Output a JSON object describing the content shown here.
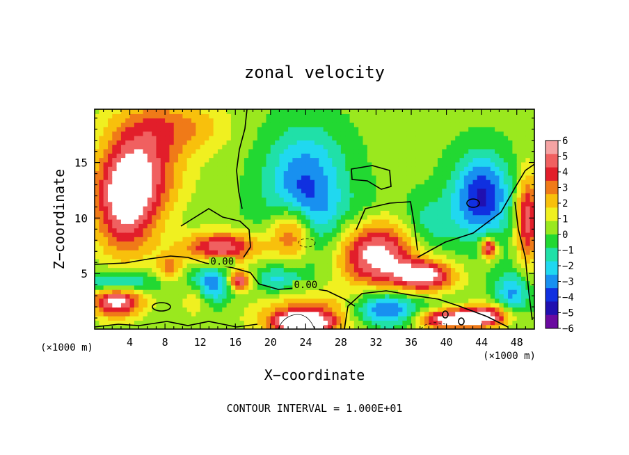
{
  "chart_data": {
    "type": "heatmap",
    "title": "zonal velocity",
    "xlabel": "X−coordinate",
    "ylabel": "Z−coordinate",
    "x_unit_left": "(×1000 m)",
    "x_unit_right": "(×1000 m)",
    "footer": "CONTOUR INTERVAL = 1.000E+01",
    "xlim": [
      0,
      50
    ],
    "ylim": [
      0,
      19.8
    ],
    "x_ticks": [
      4,
      8,
      12,
      16,
      20,
      24,
      28,
      32,
      36,
      40,
      44,
      48
    ],
    "y_ticks": [
      5,
      10,
      15
    ],
    "contour_labels": [
      {
        "text": "0.00",
        "x": 14.5,
        "y": 5.8
      },
      {
        "text": "0.00",
        "x": 24.0,
        "y": 3.7
      }
    ],
    "colorbar": {
      "range": [
        -6,
        6
      ],
      "ticks": [
        "6",
        "5",
        "4",
        "3",
        "2",
        "1",
        "0",
        "−1",
        "−2",
        "−3",
        "−4",
        "−5",
        "−6"
      ],
      "colors": [
        "#f5a3a3",
        "#f06060",
        "#e21e2a",
        "#f07a18",
        "#f8c00c",
        "#f0f020",
        "#9ae81e",
        "#22d832",
        "#20e0a8",
        "#20d8f0",
        "#1890f0",
        "#1030e0",
        "#2010b0",
        "#6a0aa0"
      ]
    },
    "blobs": [
      {
        "x": 3.5,
        "y": 11.5,
        "rx": 3.6,
        "ry": 4.8,
        "v": 6.3
      },
      {
        "x": 6.0,
        "y": 14.5,
        "rx": 4.5,
        "ry": 4.0,
        "v": 3.5
      },
      {
        "x": 7.5,
        "y": 18.5,
        "rx": 5.5,
        "ry": 2.5,
        "v": 2.5
      },
      {
        "x": 12.5,
        "y": 18.0,
        "rx": 4.0,
        "ry": 2.5,
        "v": 1.0
      },
      {
        "x": 2.5,
        "y": 2.6,
        "rx": 3.0,
        "ry": 1.5,
        "v": 6.3
      },
      {
        "x": 2.5,
        "y": 4.2,
        "rx": 4.0,
        "ry": 1.0,
        "v": -4.5
      },
      {
        "x": 14.5,
        "y": 7.4,
        "rx": 4.5,
        "ry": 1.4,
        "v": 5.5
      },
      {
        "x": 13.0,
        "y": 4.0,
        "rx": 2.4,
        "ry": 1.6,
        "v": -4.5
      },
      {
        "x": 16.5,
        "y": 4.4,
        "rx": 1.3,
        "ry": 0.9,
        "v": 6.2
      },
      {
        "x": 11.5,
        "y": 3.0,
        "rx": 1.5,
        "ry": 1.5,
        "v": 3.0
      },
      {
        "x": 8.5,
        "y": 5.5,
        "rx": 1.5,
        "ry": 1.2,
        "v": 3.0
      },
      {
        "x": 22.5,
        "y": 8.8,
        "rx": 2.6,
        "ry": 2.6,
        "v": 6.5
      },
      {
        "x": 23.8,
        "y": 10.5,
        "rx": 4.2,
        "ry": 4.2,
        "v": -5.0
      },
      {
        "x": 24.0,
        "y": 15.5,
        "rx": 4.5,
        "ry": 3.5,
        "v": -2.2
      },
      {
        "x": 24.5,
        "y": 1.2,
        "rx": 6.0,
        "ry": 2.0,
        "v": 4.0
      },
      {
        "x": 23.5,
        "y": 0.6,
        "rx": 3.0,
        "ry": 0.9,
        "v": 6.5
      },
      {
        "x": 21.0,
        "y": 4.5,
        "rx": 3.0,
        "ry": 1.2,
        "v": -2.5
      },
      {
        "x": 32.0,
        "y": 6.8,
        "rx": 4.5,
        "ry": 3.0,
        "v": 6.5
      },
      {
        "x": 37.5,
        "y": 4.8,
        "rx": 3.5,
        "ry": 1.4,
        "v": 6.3
      },
      {
        "x": 33.0,
        "y": 1.8,
        "rx": 4.0,
        "ry": 1.6,
        "v": -5.0
      },
      {
        "x": 40.0,
        "y": 0.9,
        "rx": 3.5,
        "ry": 0.9,
        "v": 6.3
      },
      {
        "x": 44.5,
        "y": 1.2,
        "rx": 3.0,
        "ry": 1.0,
        "v": 6.2
      },
      {
        "x": 44.0,
        "y": 12.0,
        "rx": 3.2,
        "ry": 3.6,
        "v": -5.5
      },
      {
        "x": 44.8,
        "y": 7.3,
        "rx": 0.9,
        "ry": 0.9,
        "v": 6.5
      },
      {
        "x": 49.2,
        "y": 10.0,
        "rx": 1.3,
        "ry": 4.0,
        "v": 5.5
      },
      {
        "x": 38.0,
        "y": 9.5,
        "rx": 3.0,
        "ry": 2.5,
        "v": -2.0
      },
      {
        "x": 47.5,
        "y": 3.2,
        "rx": 2.0,
        "ry": 2.0,
        "v": -3.5
      },
      {
        "x": 30.5,
        "y": 10.5,
        "rx": 3.0,
        "ry": 2.5,
        "v": -0.8
      }
    ]
  }
}
